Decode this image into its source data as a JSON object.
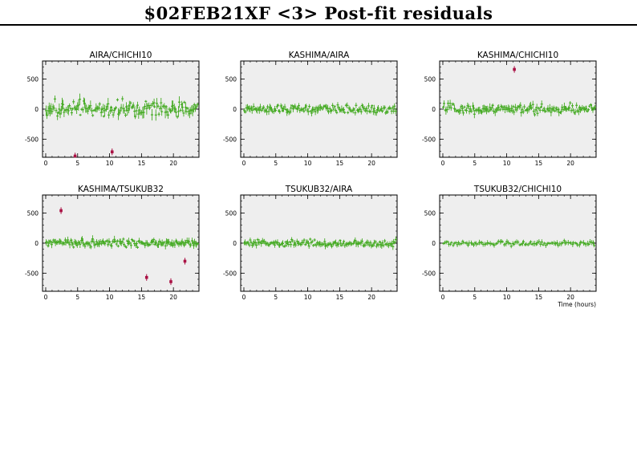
{
  "page": {
    "title": "$02FEB21XF <3> Post-fit residuals",
    "xaxis_note": "Time (hours)"
  },
  "colors": {
    "panel_bg": "#eeeeee",
    "good_points": "#44aa22",
    "flagged_points": "#aa1144"
  },
  "chart_data": [
    {
      "type": "scatter",
      "title": "AIRA/CHICHI10",
      "xlim": [
        -0.5,
        24
      ],
      "ylim": [
        -800,
        800
      ],
      "xticks": [
        "0",
        "5",
        "10",
        "15",
        "20"
      ],
      "yticks": [
        "500",
        "0",
        "-500"
      ],
      "grid": false,
      "n_good": 150,
      "good_spread": 90,
      "flagged": [
        {
          "x": 4.6,
          "y": -780
        },
        {
          "x": 10.4,
          "y": -710
        }
      ]
    },
    {
      "type": "scatter",
      "title": "KASHIMA/AIRA",
      "xlim": [
        -0.5,
        24
      ],
      "ylim": [
        -800,
        800
      ],
      "xticks": [
        "0",
        "5",
        "10",
        "15",
        "20"
      ],
      "yticks": [
        "500",
        "0",
        "-500"
      ],
      "grid": false,
      "n_good": 150,
      "good_spread": 45,
      "flagged": []
    },
    {
      "type": "scatter",
      "title": "KASHIMA/CHICHI10",
      "xlim": [
        -0.5,
        24
      ],
      "ylim": [
        -800,
        800
      ],
      "xticks": [
        "0",
        "5",
        "10",
        "15",
        "20"
      ],
      "yticks": [
        "500",
        "0",
        "-500"
      ],
      "grid": false,
      "n_good": 150,
      "good_spread": 55,
      "flagged": [
        {
          "x": 11.2,
          "y": 660
        }
      ]
    },
    {
      "type": "scatter",
      "title": "KASHIMA/TSUKUB32",
      "xlim": [
        -0.5,
        24
      ],
      "ylim": [
        -800,
        800
      ],
      "xticks": [
        "0",
        "5",
        "10",
        "15",
        "20"
      ],
      "yticks": [
        "500",
        "0",
        "-500"
      ],
      "grid": false,
      "n_good": 160,
      "good_spread": 45,
      "flagged": [
        {
          "x": 2.4,
          "y": 540
        },
        {
          "x": 15.8,
          "y": -570
        },
        {
          "x": 19.6,
          "y": -640
        },
        {
          "x": 21.8,
          "y": -300
        }
      ]
    },
    {
      "type": "scatter",
      "title": "TSUKUB32/AIRA",
      "xlim": [
        -0.5,
        24
      ],
      "ylim": [
        -800,
        800
      ],
      "xticks": [
        "0",
        "5",
        "10",
        "15",
        "20"
      ],
      "yticks": [
        "500",
        "0",
        "-500"
      ],
      "grid": false,
      "n_good": 150,
      "good_spread": 40,
      "flagged": []
    },
    {
      "type": "scatter",
      "title": "TSUKUB32/CHICHI10",
      "xlim": [
        -0.5,
        24
      ],
      "ylim": [
        -800,
        800
      ],
      "xticks": [
        "0",
        "5",
        "10",
        "15",
        "20"
      ],
      "yticks": [
        "500",
        "0",
        "-500"
      ],
      "grid": false,
      "n_good": 110,
      "good_spread": 30,
      "flagged": []
    }
  ]
}
